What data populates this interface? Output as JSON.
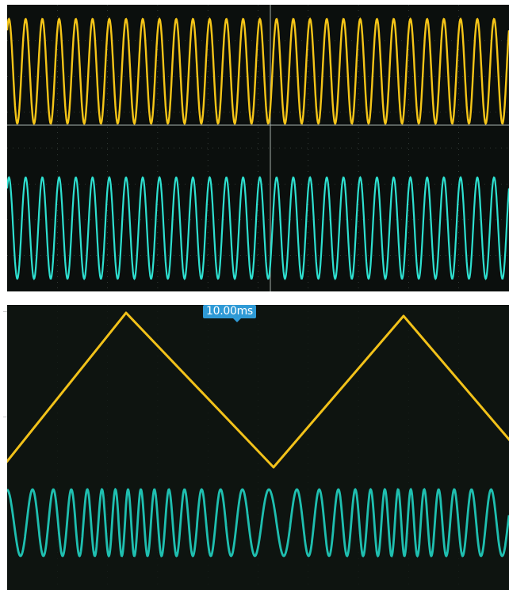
{
  "photo_top": {
    "description_colors": {
      "background": "#0b0f0d",
      "channel1": "#f5c518",
      "channel2": "#2ee0d0",
      "grid": "#6d7a74"
    },
    "channel1": {
      "shape": "sine",
      "cycles": 30
    },
    "channel2": {
      "shape": "sine",
      "cycles": 30
    }
  },
  "photo_bottom": {
    "timebase_label": "10.00ms",
    "description_colors": {
      "background": "#0e1410",
      "channel1": "#f2c21a",
      "channel2": "#1fbfb0",
      "badge": "#2f9ad6"
    },
    "channel1": {
      "shape": "triangle",
      "cycles": 1.85
    },
    "channel2": {
      "shape": "frequency-modulated sine",
      "cycles": 28
    }
  }
}
